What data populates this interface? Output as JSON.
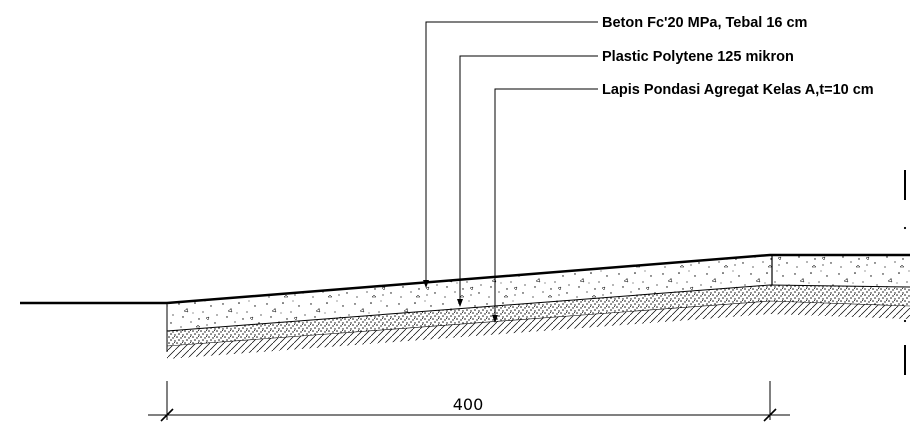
{
  "labels": {
    "concrete": "Beton Fc'20 MPa, Tebal 16 cm",
    "plastic": "Plastic Polytene 125 mikron",
    "aggregate": "Lapis Pondasi Agregat Kelas A,t=10 cm"
  },
  "dimension": {
    "width_value": "400"
  },
  "colors": {
    "line": "#000000",
    "background": "#ffffff"
  }
}
